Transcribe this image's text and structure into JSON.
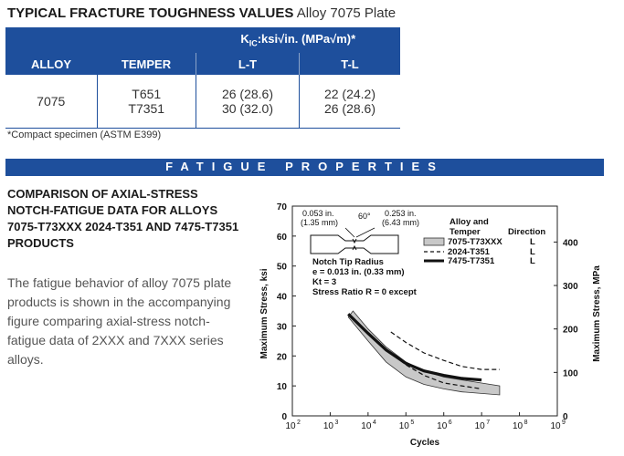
{
  "title": {
    "bold": "TYPICAL FRACTURE TOUGHNESS VALUES",
    "light": "Alloy 7075 Plate"
  },
  "table": {
    "header_span_pre": "K",
    "header_span_sub": "IC",
    "header_span_post": ":ksi√in. (MPa√m)*",
    "col_alloy": "ALLOY",
    "col_temper": "TEMPER",
    "col_lt": "L-T",
    "col_tl": "T-L",
    "alloy": "7075",
    "rows": [
      {
        "temper": "T651",
        "lt": "26 (28.6)",
        "tl": "22 (24.2)"
      },
      {
        "temper": "T7351",
        "lt": "30 (32.0)",
        "tl": "26 (28.6)"
      }
    ]
  },
  "footnote": "*Compact specimen (ASTM E399)",
  "fatigue_banner": "FATIGUE PROPERTIES",
  "comparison": {
    "heading": "COMPARISON OF AXIAL-STRESS NOTCH-FATIGUE DATA FOR ALLOYS 7075-T73XXX 2024-T351 AND 7475-T7351 PRODUCTS",
    "paragraph": "The fatigue behavior of alloy 7075 plate products is shown in the accompanying figure comparing axial-stress notch-fatigue data of 2XXX and 7XXX series alloys."
  },
  "figure": {
    "specimen_dim_left_in": "0.053 in.",
    "specimen_dim_left_mm": "(1.35 mm)",
    "specimen_angle": "60°",
    "specimen_dim_right_in": "0.253 in.",
    "specimen_dim_right_mm": "(6.43 mm)",
    "notes": [
      "Notch Tip Radius",
      "e = 0.013 in. (0.33 mm)",
      "Kt = 3",
      "Stress Ratio R = 0 except"
    ],
    "legend_header_alloy_1": "Alloy and",
    "legend_header_alloy_2": "Temper",
    "legend_header_direction": "Direction"
  },
  "chart_data": {
    "type": "line",
    "xlabel": "Cycles",
    "ylabel": "Maximum Stress, ksi",
    "ylabel_right": "Maximum Stress, MPa",
    "x_scale": "log",
    "x_ticks": [
      "10",
      "10",
      "10",
      "10",
      "10",
      "10",
      "10",
      "10"
    ],
    "x_tick_exponents": [
      "2",
      "3",
      "4",
      "5",
      "6",
      "7",
      "8",
      "9"
    ],
    "y_ticks": [
      "0",
      "10",
      "20",
      "30",
      "40",
      "50",
      "60",
      "70"
    ],
    "y_right_ticks": [
      "0",
      "100",
      "200",
      "300",
      "400"
    ],
    "xlim": [
      100,
      1000000000
    ],
    "ylim": [
      0,
      70
    ],
    "series": [
      {
        "name": "7075-T73XXX",
        "direction": "L",
        "style": "band",
        "upper": [
          [
            4000,
            35
          ],
          [
            10000,
            29
          ],
          [
            30000,
            23
          ],
          [
            100000,
            18
          ],
          [
            300000,
            15
          ],
          [
            1000000,
            13
          ],
          [
            3000000,
            12
          ],
          [
            30000000,
            10
          ]
        ],
        "lower": [
          [
            3000,
            33
          ],
          [
            10000,
            25
          ],
          [
            30000,
            18
          ],
          [
            100000,
            13
          ],
          [
            300000,
            10.5
          ],
          [
            1000000,
            9
          ],
          [
            3000000,
            8
          ],
          [
            30000000,
            7
          ]
        ]
      },
      {
        "name": "2024-T351",
        "direction": "L",
        "style": "dashed",
        "points": [
          [
            50000,
            20
          ],
          [
            100000,
            17
          ],
          [
            300000,
            13.5
          ],
          [
            1000000,
            11
          ],
          [
            3000000,
            10
          ],
          [
            10000000,
            9
          ]
        ]
      },
      {
        "name": "7475-T7351",
        "direction": "L",
        "style": "thick",
        "points": [
          [
            3000,
            34
          ],
          [
            10000,
            27.5
          ],
          [
            30000,
            22
          ],
          [
            100000,
            17.5
          ],
          [
            300000,
            15
          ],
          [
            1000000,
            13.5
          ],
          [
            3000000,
            12.5
          ],
          [
            10000000,
            12
          ]
        ]
      },
      {
        "name": "",
        "style": "dashed-upper",
        "points": [
          [
            40000,
            28
          ],
          [
            100000,
            24.5
          ],
          [
            300000,
            21
          ],
          [
            1000000,
            18.5
          ],
          [
            3000000,
            16.5
          ],
          [
            10000000,
            15.5
          ],
          [
            30000000,
            15.5
          ]
        ]
      }
    ]
  }
}
